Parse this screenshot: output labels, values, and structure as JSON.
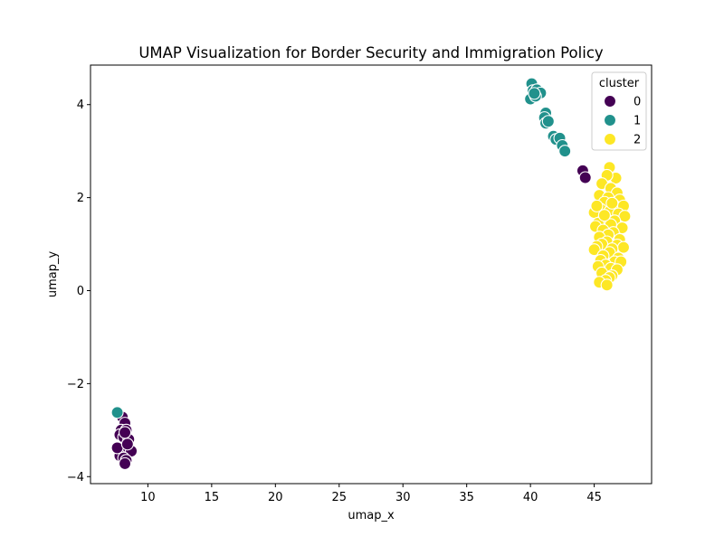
{
  "chart_data": {
    "type": "scatter",
    "title": "UMAP Visualization for Border Security and Immigration Policy",
    "xlabel": "umap_x",
    "ylabel": "umap_y",
    "xlim": [
      5.5,
      49.5
    ],
    "ylim": [
      -4.15,
      4.85
    ],
    "xticks": [
      10,
      15,
      20,
      25,
      30,
      35,
      40,
      45
    ],
    "xtick_labels": [
      "10",
      "15",
      "20",
      "25",
      "30",
      "35",
      "40",
      "45"
    ],
    "yticks": [
      -4,
      -2,
      0,
      2,
      4
    ],
    "ytick_labels": [
      "−4",
      "−2",
      "0",
      "2",
      "4"
    ],
    "grid": false,
    "legend": {
      "title": "cluster",
      "placement": "top-right",
      "entries": [
        {
          "label": "0",
          "color": "#440154"
        },
        {
          "label": "1",
          "color": "#21918c"
        },
        {
          "label": "2",
          "color": "#fde725"
        }
      ]
    },
    "series": [
      {
        "cluster": "0",
        "color": "#440154",
        "points": [
          [
            8.0,
            -2.72
          ],
          [
            8.2,
            -2.85
          ],
          [
            7.9,
            -3.0
          ],
          [
            8.3,
            -3.0
          ],
          [
            7.8,
            -3.1
          ],
          [
            8.1,
            -3.15
          ],
          [
            8.5,
            -3.2
          ],
          [
            7.7,
            -3.4
          ],
          [
            8.0,
            -3.45
          ],
          [
            8.4,
            -3.45
          ],
          [
            8.7,
            -3.45
          ],
          [
            7.8,
            -3.55
          ],
          [
            8.1,
            -3.6
          ],
          [
            8.3,
            -3.65
          ],
          [
            8.2,
            -3.72
          ],
          [
            7.6,
            -3.38
          ],
          [
            8.4,
            -3.3
          ],
          [
            8.2,
            -3.05
          ],
          [
            44.1,
            2.58
          ],
          [
            44.3,
            2.43
          ]
        ]
      },
      {
        "cluster": "1",
        "color": "#21918c",
        "points": [
          [
            40.1,
            4.45
          ],
          [
            40.2,
            4.3
          ],
          [
            40.5,
            4.32
          ],
          [
            40.8,
            4.25
          ],
          [
            40.0,
            4.12
          ],
          [
            40.4,
            4.18
          ],
          [
            40.3,
            4.24
          ],
          [
            41.2,
            3.82
          ],
          [
            41.1,
            3.72
          ],
          [
            41.2,
            3.6
          ],
          [
            41.4,
            3.64
          ],
          [
            41.8,
            3.32
          ],
          [
            42.0,
            3.25
          ],
          [
            42.3,
            3.28
          ],
          [
            42.5,
            3.12
          ],
          [
            42.7,
            3.0
          ],
          [
            7.6,
            -2.62
          ]
        ]
      },
      {
        "cluster": "2",
        "color": "#fde725",
        "points": [
          [
            46.2,
            2.65
          ],
          [
            46.7,
            2.42
          ],
          [
            46.0,
            2.48
          ],
          [
            45.6,
            2.3
          ],
          [
            46.3,
            2.2
          ],
          [
            46.8,
            2.1
          ],
          [
            45.4,
            2.05
          ],
          [
            46.1,
            2.0
          ],
          [
            47.0,
            1.95
          ],
          [
            45.8,
            1.9
          ],
          [
            46.5,
            1.85
          ],
          [
            47.3,
            1.82
          ],
          [
            45.5,
            1.75
          ],
          [
            46.2,
            1.7
          ],
          [
            45.0,
            1.68
          ],
          [
            46.9,
            1.65
          ],
          [
            47.4,
            1.6
          ],
          [
            45.9,
            1.55
          ],
          [
            46.6,
            1.5
          ],
          [
            45.3,
            1.45
          ],
          [
            46.3,
            1.42
          ],
          [
            45.1,
            1.38
          ],
          [
            47.2,
            1.35
          ],
          [
            45.7,
            1.3
          ],
          [
            46.5,
            1.25
          ],
          [
            46.1,
            1.2
          ],
          [
            45.4,
            1.15
          ],
          [
            47.0,
            1.1
          ],
          [
            46.0,
            1.05
          ],
          [
            45.6,
            1.0
          ],
          [
            46.8,
            0.98
          ],
          [
            45.2,
            0.95
          ],
          [
            47.3,
            0.93
          ],
          [
            46.4,
            0.9
          ],
          [
            45.0,
            0.88
          ],
          [
            46.2,
            0.82
          ],
          [
            45.7,
            0.75
          ],
          [
            46.9,
            0.7
          ],
          [
            45.5,
            0.65
          ],
          [
            46.6,
            0.62
          ],
          [
            47.1,
            0.62
          ],
          [
            45.9,
            0.55
          ],
          [
            45.3,
            0.52
          ],
          [
            46.3,
            0.48
          ],
          [
            46.8,
            0.45
          ],
          [
            45.6,
            0.38
          ],
          [
            46.4,
            0.32
          ],
          [
            46.2,
            0.28
          ],
          [
            45.9,
            0.22
          ],
          [
            45.4,
            0.18
          ],
          [
            46.0,
            0.12
          ],
          [
            45.8,
            1.62
          ],
          [
            46.4,
            1.88
          ],
          [
            45.2,
            1.82
          ]
        ]
      }
    ]
  }
}
